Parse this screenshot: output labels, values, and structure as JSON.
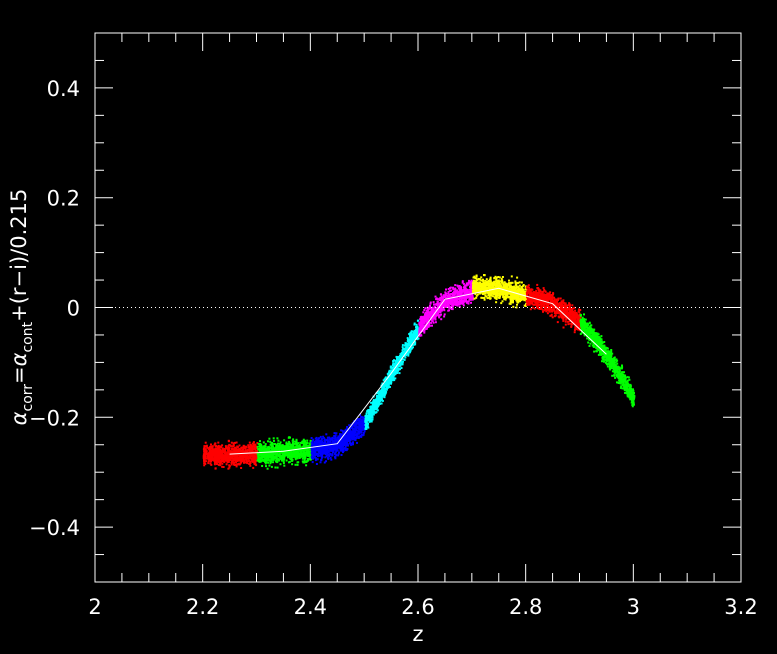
{
  "chart_data": {
    "type": "scatter",
    "background": "#000000",
    "xlabel": "z",
    "ylabel_parts": {
      "alpha1": "α",
      "sub1": "corr",
      "eq": "=",
      "alpha2": "α",
      "sub2": "cont",
      "rest": "+(r−i)/0.215"
    },
    "xlim": [
      2.0,
      3.2
    ],
    "ylim": [
      -0.5,
      0.5
    ],
    "x_ticks": [
      {
        "v": 2.0,
        "label": "2"
      },
      {
        "v": 2.2,
        "label": "2.2"
      },
      {
        "v": 2.4,
        "label": "2.4"
      },
      {
        "v": 2.6,
        "label": "2.6"
      },
      {
        "v": 2.8,
        "label": "2.8"
      },
      {
        "v": 3.0,
        "label": "3"
      },
      {
        "v": 3.2,
        "label": "3.2"
      }
    ],
    "y_ticks": [
      {
        "v": -0.4,
        "label": "−0.4"
      },
      {
        "v": -0.2,
        "label": "−0.2"
      },
      {
        "v": 0.0,
        "label": "0"
      },
      {
        "v": 0.2,
        "label": "0.2"
      },
      {
        "v": 0.4,
        "label": "0.4"
      }
    ],
    "x_minor_step": 0.05,
    "y_minor_step": 0.05,
    "reference_line": {
      "y": 0.0,
      "style": "dotted",
      "color": "#ffffff"
    },
    "series": [
      {
        "color": "#ff0000",
        "x": [
          2.2,
          2.25,
          2.3
        ],
        "y": [
          -0.266,
          -0.267,
          -0.265
        ]
      },
      {
        "color": "#00ff00",
        "x": [
          2.3,
          2.35,
          2.4
        ],
        "y": [
          -0.265,
          -0.262,
          -0.258
        ]
      },
      {
        "color": "#0000ff",
        "x": [
          2.4,
          2.45,
          2.5
        ],
        "y": [
          -0.258,
          -0.248,
          -0.21
        ]
      },
      {
        "color": "#00ffff",
        "x": [
          2.5,
          2.55,
          2.6
        ],
        "y": [
          -0.21,
          -0.12,
          -0.035
        ]
      },
      {
        "color": "#ff00ff",
        "x": [
          2.6,
          2.65,
          2.7
        ],
        "y": [
          -0.035,
          0.015,
          0.03
        ]
      },
      {
        "color": "#ffff00",
        "x": [
          2.7,
          2.75,
          2.8
        ],
        "y": [
          0.04,
          0.035,
          0.025
        ]
      },
      {
        "color": "#ff0000",
        "x": [
          2.8,
          2.85,
          2.9
        ],
        "y": [
          0.025,
          0.007,
          -0.025
        ]
      },
      {
        "color": "#00ff00",
        "x": [
          2.9,
          2.95,
          3.0
        ],
        "y": [
          -0.025,
          -0.085,
          -0.165
        ]
      }
    ],
    "mean_line": {
      "color": "#ffffff",
      "x": [
        2.25,
        2.35,
        2.45,
        2.55,
        2.65,
        2.75,
        2.85,
        2.95
      ],
      "y": [
        -0.267,
        -0.262,
        -0.248,
        -0.12,
        0.015,
        0.035,
        0.007,
        -0.085
      ]
    }
  }
}
